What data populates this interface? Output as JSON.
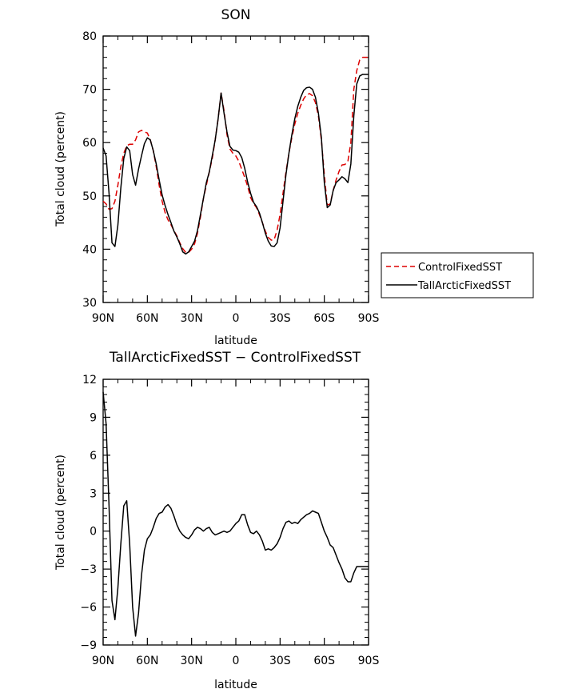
{
  "chart_data": [
    {
      "type": "line",
      "title": "SON",
      "xlabel": "latitude",
      "ylabel": "Total cloud (percent)",
      "xlim": [
        90,
        -90
      ],
      "ylim": [
        30,
        80
      ],
      "x_ticks": [
        90,
        60,
        30,
        0,
        -30,
        -60,
        -90
      ],
      "x_tick_labels": [
        "90N",
        "60N",
        "30N",
        "0",
        "30S",
        "60S",
        "90S"
      ],
      "y_ticks": [
        30,
        40,
        50,
        60,
        70,
        80
      ],
      "y_tick_labels": [
        "30",
        "40",
        "50",
        "60",
        "70",
        "80"
      ],
      "grid": false,
      "legend": "outside-right",
      "series": [
        {
          "name": "ControlFixedSST",
          "color": "#dd0000",
          "dash": "dashed",
          "x": [
            90,
            88,
            86,
            84,
            82,
            80,
            78,
            76,
            74,
            72,
            70,
            68,
            66,
            64,
            62,
            60,
            58,
            56,
            54,
            52,
            50,
            48,
            46,
            44,
            42,
            40,
            38,
            36,
            34,
            32,
            30,
            28,
            26,
            24,
            22,
            20,
            18,
            16,
            14,
            12,
            10,
            8,
            6,
            4,
            2,
            0,
            -2,
            -4,
            -6,
            -8,
            -10,
            -12,
            -14,
            -16,
            -18,
            -20,
            -22,
            -24,
            -26,
            -28,
            -30,
            -32,
            -34,
            -36,
            -38,
            -40,
            -42,
            -44,
            -46,
            -48,
            -50,
            -52,
            -54,
            -56,
            -58,
            -60,
            -62,
            -64,
            -66,
            -68,
            -70,
            -72,
            -74,
            -76,
            -78,
            -80,
            -82,
            -84,
            -86,
            -88,
            -90
          ],
          "y": [
            49.0,
            48.5,
            47.5,
            47.6,
            49.0,
            52.0,
            55.5,
            58.0,
            59.4,
            59.7,
            59.7,
            60.5,
            62.0,
            62.3,
            62.0,
            61.8,
            60.5,
            58.5,
            55.5,
            52.0,
            49.0,
            46.9,
            45.5,
            44.6,
            43.5,
            42.5,
            41.2,
            40.1,
            39.4,
            39.4,
            40.0,
            41.0,
            43.0,
            46.0,
            49.5,
            52.0,
            54.5,
            57.0,
            60.5,
            64.5,
            69.3,
            66.0,
            61.5,
            58.8,
            58.0,
            57.5,
            56.5,
            55.0,
            53.5,
            51.8,
            49.7,
            48.6,
            47.8,
            46.5,
            45.0,
            43.4,
            42.2,
            41.7,
            41.8,
            43.6,
            46.5,
            50.5,
            54.5,
            58.0,
            61.0,
            63.5,
            65.5,
            67.0,
            68.2,
            69.0,
            69.2,
            68.8,
            67.5,
            65.0,
            60.5,
            54.0,
            48.3,
            48.5,
            51.0,
            53.0,
            54.6,
            55.8,
            55.9,
            56.5,
            60.0,
            70.0,
            73.5,
            75.5,
            76.0,
            76.0,
            76.0
          ]
        },
        {
          "name": "TallArcticFixedSST",
          "color": "#000000",
          "dash": "solid",
          "x": [
            90,
            88,
            86,
            84,
            82,
            80,
            78,
            76,
            74,
            72,
            70,
            68,
            66,
            64,
            62,
            60,
            58,
            56,
            54,
            52,
            50,
            48,
            46,
            44,
            42,
            40,
            38,
            36,
            34,
            32,
            30,
            28,
            26,
            24,
            22,
            20,
            18,
            16,
            14,
            12,
            10,
            8,
            6,
            4,
            2,
            0,
            -2,
            -4,
            -6,
            -8,
            -10,
            -12,
            -14,
            -16,
            -18,
            -20,
            -22,
            -24,
            -26,
            -28,
            -30,
            -32,
            -34,
            -36,
            -38,
            -40,
            -42,
            -44,
            -46,
            -48,
            -50,
            -52,
            -54,
            -56,
            -58,
            -60,
            -62,
            -64,
            -66,
            -68,
            -70,
            -72,
            -74,
            -76,
            -78,
            -80,
            -82,
            -84,
            -86,
            -88,
            -90
          ],
          "y": [
            59.0,
            57.5,
            50.5,
            41.2,
            40.5,
            44.5,
            51.5,
            57.0,
            59.2,
            58.5,
            54.0,
            52.0,
            55.0,
            57.5,
            59.8,
            60.9,
            60.5,
            58.5,
            56.0,
            53.0,
            50.2,
            48.2,
            46.5,
            45.0,
            43.4,
            42.3,
            41.0,
            39.5,
            39.1,
            39.5,
            40.5,
            41.5,
            43.5,
            46.5,
            49.5,
            52.5,
            54.5,
            57.5,
            60.5,
            64.5,
            69.3,
            65.5,
            62.0,
            59.3,
            58.6,
            58.5,
            58.2,
            57.2,
            55.2,
            52.6,
            50.5,
            48.8,
            48.0,
            46.8,
            45.0,
            43.0,
            41.5,
            40.6,
            40.5,
            41.2,
            44.0,
            49.0,
            54.0,
            58.0,
            61.5,
            64.5,
            66.8,
            68.5,
            69.8,
            70.3,
            70.4,
            70.0,
            68.5,
            65.5,
            61.0,
            52.5,
            47.8,
            48.3,
            51.0,
            52.5,
            53.0,
            53.6,
            53.2,
            52.5,
            56.0,
            65.0,
            71.0,
            72.5,
            72.8,
            72.8,
            72.8
          ]
        }
      ]
    },
    {
      "type": "line",
      "title": "TallArcticFixedSST − ControlFixedSST",
      "xlabel": "latitude",
      "ylabel": "Total cloud (percent)",
      "xlim": [
        90,
        -90
      ],
      "ylim": [
        -9,
        12
      ],
      "x_ticks": [
        90,
        60,
        30,
        0,
        -30,
        -60,
        -90
      ],
      "x_tick_labels": [
        "90N",
        "60N",
        "30N",
        "0",
        "30S",
        "60S",
        "90S"
      ],
      "y_ticks": [
        -9,
        -6,
        -3,
        0,
        3,
        6,
        9,
        12
      ],
      "y_tick_labels": [
        "−9",
        "−6",
        "−3",
        "0",
        "3",
        "6",
        "9",
        "12"
      ],
      "grid": false,
      "series": [
        {
          "color": "#000000",
          "dash": "solid",
          "x": [
            90,
            88,
            86,
            84,
            82,
            80,
            78,
            76,
            74,
            72,
            70,
            68,
            66,
            64,
            62,
            60,
            58,
            56,
            54,
            52,
            50,
            48,
            46,
            44,
            42,
            40,
            38,
            36,
            34,
            32,
            30,
            28,
            26,
            24,
            22,
            20,
            18,
            16,
            14,
            12,
            10,
            8,
            6,
            4,
            2,
            0,
            -2,
            -4,
            -6,
            -8,
            -10,
            -12,
            -14,
            -16,
            -18,
            -20,
            -22,
            -24,
            -26,
            -28,
            -30,
            -32,
            -34,
            -36,
            -38,
            -40,
            -42,
            -44,
            -46,
            -48,
            -50,
            -52,
            -54,
            -56,
            -58,
            -60,
            -62,
            -64,
            -66,
            -68,
            -70,
            -72,
            -74,
            -76,
            -78,
            -80,
            -82,
            -84,
            -86,
            -88,
            -90
          ],
          "y": [
            11.0,
            8.5,
            2.0,
            -5.5,
            -7.0,
            -4.5,
            -1.0,
            2.0,
            2.4,
            -1.0,
            -6.0,
            -8.3,
            -6.5,
            -3.5,
            -1.5,
            -0.6,
            -0.3,
            0.3,
            1.0,
            1.4,
            1.5,
            1.9,
            2.1,
            1.8,
            1.2,
            0.5,
            0.0,
            -0.3,
            -0.5,
            -0.6,
            -0.3,
            0.1,
            0.3,
            0.2,
            0.0,
            0.2,
            0.3,
            -0.1,
            -0.3,
            -0.2,
            -0.1,
            0.0,
            -0.1,
            0.0,
            0.3,
            0.6,
            0.8,
            1.3,
            1.3,
            0.5,
            -0.1,
            -0.2,
            0.0,
            -0.3,
            -0.8,
            -1.5,
            -1.4,
            -1.5,
            -1.3,
            -1.0,
            -0.5,
            0.2,
            0.7,
            0.8,
            0.6,
            0.7,
            0.6,
            0.9,
            1.1,
            1.3,
            1.4,
            1.6,
            1.5,
            1.4,
            0.7,
            0.0,
            -0.5,
            -1.1,
            -1.3,
            -1.9,
            -2.5,
            -3.0,
            -3.7,
            -4.0,
            -4.0,
            -3.3,
            -2.8,
            -2.8,
            -2.8,
            -2.8,
            -2.8
          ]
        }
      ]
    }
  ]
}
